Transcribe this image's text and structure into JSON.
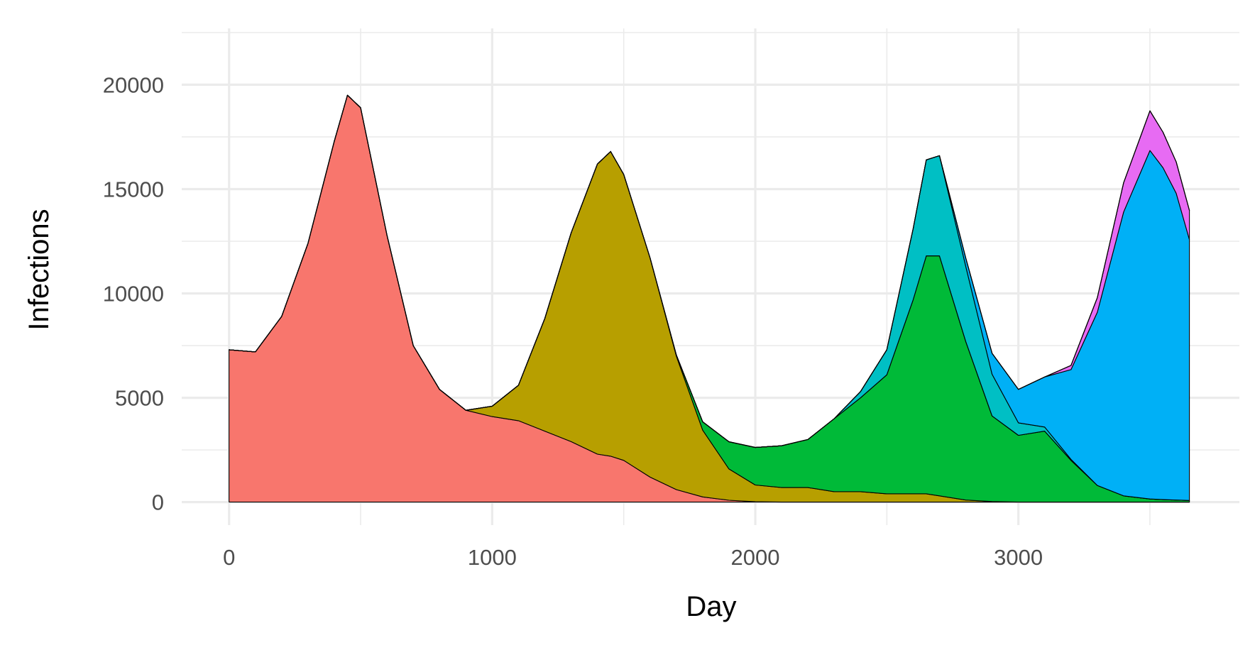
{
  "chart_data": {
    "type": "area",
    "stacked": true,
    "title": "",
    "xlabel": "Day",
    "ylabel": "Infections",
    "xlim": [
      -180,
      3840
    ],
    "ylim": [
      -1100,
      22700
    ],
    "x_ticks": [
      0,
      1000,
      2000,
      3000
    ],
    "x_tick_labels": [
      "0",
      "1000",
      "2000",
      "3000"
    ],
    "x_minor_ticks": [
      500,
      1500,
      2500,
      3500
    ],
    "y_ticks": [
      0,
      5000,
      10000,
      15000,
      20000
    ],
    "y_tick_labels": [
      "0",
      "5000",
      "10000",
      "15000",
      "20000"
    ],
    "y_minor_ticks": [
      2500,
      7500,
      12500,
      17500,
      22500
    ],
    "grid": true,
    "legend": "none",
    "x": [
      0,
      100,
      200,
      300,
      400,
      450,
      500,
      600,
      700,
      800,
      900,
      1000,
      1100,
      1200,
      1300,
      1400,
      1450,
      1500,
      1600,
      1700,
      1800,
      1900,
      2000,
      2100,
      2200,
      2300,
      2400,
      2500,
      2600,
      2650,
      2700,
      2800,
      2900,
      3000,
      3100,
      3200,
      3300,
      3400,
      3500,
      3550,
      3600,
      3650
    ],
    "series": [
      {
        "color": "#F8766D",
        "values": [
          7300,
          7200,
          8900,
          12400,
          17300,
          19500,
          18900,
          12800,
          7500,
          5400,
          4400,
          4100,
          3900,
          3400,
          2900,
          2300,
          2200,
          2000,
          1200,
          600,
          250,
          90,
          20,
          0,
          0,
          0,
          0,
          0,
          0,
          0,
          0,
          0,
          0,
          0,
          0,
          0,
          0,
          0,
          0,
          0,
          0,
          0
        ]
      },
      {
        "color": "#B79F00",
        "values": [
          0,
          0,
          0,
          0,
          0,
          0,
          0,
          0,
          0,
          0,
          0,
          500,
          1700,
          5400,
          10000,
          13900,
          14600,
          13700,
          10500,
          6400,
          3200,
          1500,
          800,
          700,
          700,
          500,
          500,
          400,
          400,
          400,
          300,
          100,
          30,
          0,
          0,
          0,
          0,
          0,
          0,
          0,
          0,
          0
        ]
      },
      {
        "color": "#00BA38",
        "values": [
          0,
          0,
          0,
          0,
          0,
          0,
          0,
          0,
          0,
          0,
          0,
          0,
          0,
          0,
          0,
          0,
          0,
          0,
          0,
          50,
          400,
          1300,
          1800,
          2000,
          2300,
          3500,
          4500,
          5700,
          9300,
          11400,
          11500,
          7600,
          4100,
          3200,
          3400,
          2000,
          800,
          300,
          150,
          120,
          100,
          80
        ]
      },
      {
        "color": "#00C08B",
        "values": [
          0,
          0,
          0,
          0,
          0,
          0,
          0,
          0,
          0,
          0,
          0,
          0,
          0,
          0,
          0,
          0,
          0,
          0,
          0,
          0,
          0,
          0,
          0,
          0,
          0,
          0,
          0,
          0,
          0,
          0,
          0,
          0,
          0,
          0,
          0,
          0,
          0,
          0,
          0,
          0,
          0,
          0
        ]
      },
      {
        "color": "#00BFC4",
        "values": [
          0,
          0,
          0,
          0,
          0,
          0,
          0,
          0,
          0,
          0,
          0,
          0,
          0,
          0,
          0,
          0,
          0,
          0,
          0,
          0,
          0,
          0,
          0,
          0,
          0,
          0,
          300,
          1200,
          3400,
          4600,
          4800,
          3600,
          2000,
          600,
          200,
          50,
          0,
          0,
          0,
          0,
          0,
          0
        ]
      },
      {
        "color": "#00B0F6",
        "values": [
          0,
          0,
          0,
          0,
          0,
          0,
          0,
          0,
          0,
          0,
          0,
          0,
          0,
          0,
          0,
          0,
          0,
          0,
          0,
          0,
          0,
          0,
          0,
          0,
          0,
          0,
          0,
          0,
          0,
          0,
          0,
          400,
          1000,
          1600,
          2400,
          4300,
          8300,
          13600,
          16700,
          15900,
          14700,
          12500
        ]
      },
      {
        "color": "#E76BF3",
        "values": [
          0,
          0,
          0,
          0,
          0,
          0,
          0,
          0,
          0,
          0,
          0,
          0,
          0,
          0,
          0,
          0,
          0,
          0,
          0,
          0,
          0,
          0,
          0,
          0,
          0,
          0,
          0,
          0,
          0,
          0,
          0,
          0,
          0,
          0,
          0,
          200,
          700,
          1400,
          1900,
          1700,
          1500,
          1400
        ]
      },
      {
        "color": "#FF62BC",
        "values": [
          0,
          0,
          0,
          0,
          0,
          0,
          0,
          0,
          0,
          0,
          0,
          0,
          0,
          0,
          0,
          0,
          0,
          0,
          0,
          0,
          0,
          0,
          0,
          0,
          0,
          0,
          0,
          0,
          0,
          0,
          0,
          0,
          0,
          0,
          0,
          0,
          0,
          0,
          0,
          0,
          0,
          0
        ]
      },
      {
        "color": "#00A9FF",
        "values": [
          0,
          0,
          0,
          0,
          0,
          0,
          0,
          0,
          0,
          0,
          0,
          0,
          0,
          0,
          0,
          0,
          0,
          0,
          0,
          0,
          0,
          0,
          0,
          0,
          0,
          0,
          0,
          0,
          0,
          0,
          0,
          0,
          0,
          0,
          0,
          0,
          0,
          0,
          0,
          0,
          0,
          0
        ]
      }
    ]
  }
}
